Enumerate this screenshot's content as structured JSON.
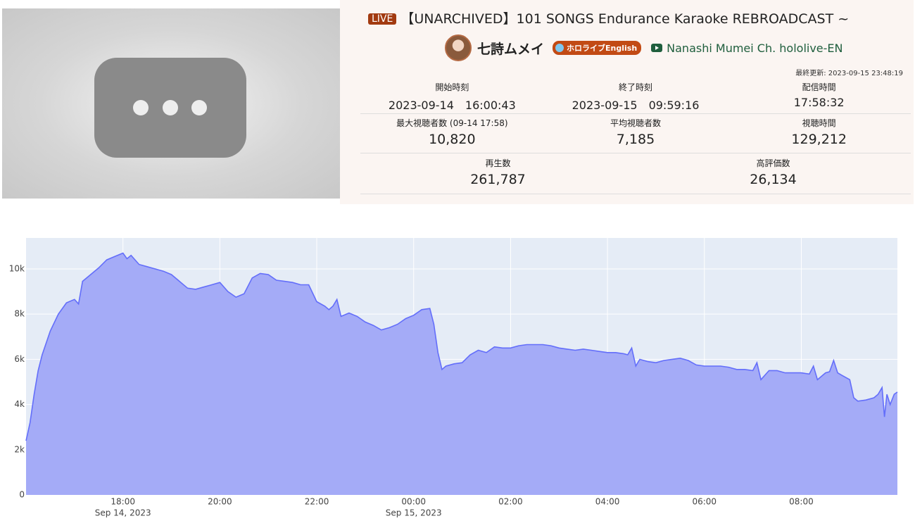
{
  "header": {
    "badge": "LIVE",
    "title": "【UNARCHIVED】101 SONGS Endurance Karaoke REBROADCAST ~",
    "channel_name": "七詩ムメイ",
    "org_badge": "ホロライブEnglish",
    "youtube_channel": "Nanashi Mumei Ch. hololive-EN",
    "last_updated": "最終更新: 2023-09-15 23:48:19"
  },
  "stats": {
    "rows": [
      [
        {
          "label": "開始時刻",
          "value": "2023-09-14　16:00:43"
        },
        {
          "label": "終了時刻",
          "value": "2023-09-15　09:59:16"
        },
        {
          "label": "配信時間",
          "value": "17:58:32"
        }
      ],
      [
        {
          "label": "最大視聴者数 (09-14 17:58)",
          "value": "10,820"
        },
        {
          "label": "平均視聴者数",
          "value": "7,185"
        },
        {
          "label": "視聴時間",
          "value": "129,212"
        }
      ],
      [
        {
          "label": "再生数",
          "value": "261,787"
        },
        {
          "label": "高評価数",
          "value": "26,134"
        }
      ]
    ]
  },
  "chart_data": {
    "type": "area",
    "grid": true,
    "xlim": [
      "2023-09-14 16:00",
      "2023-09-15 09:59"
    ],
    "ylim": [
      0,
      11370
    ],
    "xticks": [
      {
        "value": "2023-09-14 18:00",
        "label": "18:00"
      },
      {
        "value": "2023-09-14 20:00",
        "label": "20:00"
      },
      {
        "value": "2023-09-14 22:00",
        "label": "22:00"
      },
      {
        "value": "2023-09-15 00:00",
        "label": "00:00"
      },
      {
        "value": "2023-09-15 02:00",
        "label": "02:00"
      },
      {
        "value": "2023-09-15 04:00",
        "label": "04:00"
      },
      {
        "value": "2023-09-15 06:00",
        "label": "06:00"
      },
      {
        "value": "2023-09-15 08:00",
        "label": "08:00"
      }
    ],
    "xtick_dates": [
      {
        "value": "2023-09-14 18:00",
        "label": "Sep 14, 2023"
      },
      {
        "value": "2023-09-15 00:00",
        "label": "Sep 15, 2023"
      }
    ],
    "yticks": [
      0,
      {
        "value": 2000,
        "label": "2k"
      },
      {
        "value": 4000,
        "label": "4k"
      },
      {
        "value": 6000,
        "label": "6k"
      },
      {
        "value": 8000,
        "label": "8k"
      },
      {
        "value": 10000,
        "label": "10k"
      }
    ],
    "x": [
      "2023-09-14 16:00",
      "2023-09-14 16:05",
      "2023-09-14 16:10",
      "2023-09-14 16:15",
      "2023-09-14 16:20",
      "2023-09-14 16:30",
      "2023-09-14 16:40",
      "2023-09-14 16:50",
      "2023-09-14 17:00",
      "2023-09-14 17:05",
      "2023-09-14 17:10",
      "2023-09-14 17:20",
      "2023-09-14 17:30",
      "2023-09-14 17:40",
      "2023-09-14 17:50",
      "2023-09-14 18:00",
      "2023-09-14 18:05",
      "2023-09-14 18:10",
      "2023-09-14 18:20",
      "2023-09-14 18:30",
      "2023-09-14 18:40",
      "2023-09-14 18:50",
      "2023-09-14 19:00",
      "2023-09-14 19:10",
      "2023-09-14 19:20",
      "2023-09-14 19:30",
      "2023-09-14 19:40",
      "2023-09-14 19:50",
      "2023-09-14 20:00",
      "2023-09-14 20:10",
      "2023-09-14 20:20",
      "2023-09-14 20:30",
      "2023-09-14 20:40",
      "2023-09-14 20:50",
      "2023-09-14 21:00",
      "2023-09-14 21:10",
      "2023-09-14 21:20",
      "2023-09-14 21:30",
      "2023-09-14 21:40",
      "2023-09-14 21:50",
      "2023-09-14 22:00",
      "2023-09-14 22:10",
      "2023-09-14 22:15",
      "2023-09-14 22:20",
      "2023-09-14 22:25",
      "2023-09-14 22:30",
      "2023-09-14 22:40",
      "2023-09-14 22:50",
      "2023-09-14 23:00",
      "2023-09-14 23:10",
      "2023-09-14 23:20",
      "2023-09-14 23:30",
      "2023-09-14 23:40",
      "2023-09-14 23:50",
      "2023-09-15 00:00",
      "2023-09-15 00:10",
      "2023-09-15 00:20",
      "2023-09-15 00:25",
      "2023-09-15 00:30",
      "2023-09-15 00:35",
      "2023-09-15 00:40",
      "2023-09-15 00:50",
      "2023-09-15 01:00",
      "2023-09-15 01:10",
      "2023-09-15 01:20",
      "2023-09-15 01:30",
      "2023-09-15 01:40",
      "2023-09-15 01:50",
      "2023-09-15 02:00",
      "2023-09-15 02:10",
      "2023-09-15 02:20",
      "2023-09-15 02:30",
      "2023-09-15 02:40",
      "2023-09-15 02:50",
      "2023-09-15 03:00",
      "2023-09-15 03:10",
      "2023-09-15 03:20",
      "2023-09-15 03:30",
      "2023-09-15 03:40",
      "2023-09-15 03:50",
      "2023-09-15 04:00",
      "2023-09-15 04:10",
      "2023-09-15 04:20",
      "2023-09-15 04:25",
      "2023-09-15 04:30",
      "2023-09-15 04:35",
      "2023-09-15 04:40",
      "2023-09-15 04:50",
      "2023-09-15 05:00",
      "2023-09-15 05:10",
      "2023-09-15 05:20",
      "2023-09-15 05:30",
      "2023-09-15 05:40",
      "2023-09-15 05:50",
      "2023-09-15 06:00",
      "2023-09-15 06:10",
      "2023-09-15 06:20",
      "2023-09-15 06:30",
      "2023-09-15 06:40",
      "2023-09-15 06:50",
      "2023-09-15 07:00",
      "2023-09-15 07:05",
      "2023-09-15 07:10",
      "2023-09-15 07:20",
      "2023-09-15 07:30",
      "2023-09-15 07:40",
      "2023-09-15 07:50",
      "2023-09-15 08:00",
      "2023-09-15 08:10",
      "2023-09-15 08:15",
      "2023-09-15 08:20",
      "2023-09-15 08:30",
      "2023-09-15 08:35",
      "2023-09-15 08:40",
      "2023-09-15 08:45",
      "2023-09-15 08:50",
      "2023-09-15 09:00",
      "2023-09-15 09:05",
      "2023-09-15 09:10",
      "2023-09-15 09:20",
      "2023-09-15 09:30",
      "2023-09-15 09:35",
      "2023-09-15 09:40",
      "2023-09-15 09:43",
      "2023-09-15 09:46",
      "2023-09-15 09:50",
      "2023-09-15 09:55",
      "2023-09-15 09:59"
    ],
    "series": [
      {
        "color": "#636efa",
        "fill": "#a4abf7",
        "values": [
          2400,
          3200,
          4450,
          5500,
          6200,
          7250,
          8000,
          8500,
          8650,
          8450,
          9450,
          9750,
          10050,
          10400,
          10550,
          10700,
          10450,
          10600,
          10200,
          10100,
          10000,
          9900,
          9750,
          9450,
          9150,
          9100,
          9200,
          9300,
          9400,
          9000,
          8750,
          8900,
          9600,
          9800,
          9750,
          9500,
          9450,
          9400,
          9300,
          9300,
          8550,
          8350,
          8200,
          8350,
          8650,
          7900,
          8050,
          7900,
          7650,
          7500,
          7300,
          7400,
          7550,
          7800,
          7950,
          8200,
          8250,
          7550,
          6300,
          5550,
          5700,
          5800,
          5850,
          6200,
          6400,
          6300,
          6550,
          6500,
          6500,
          6600,
          6650,
          6650,
          6650,
          6600,
          6500,
          6450,
          6400,
          6450,
          6400,
          6350,
          6300,
          6300,
          6250,
          6200,
          6500,
          5700,
          6000,
          5900,
          5850,
          5950,
          6000,
          6050,
          5950,
          5750,
          5700,
          5700,
          5700,
          5650,
          5550,
          5550,
          5500,
          5850,
          5100,
          5500,
          5500,
          5400,
          5400,
          5400,
          5350,
          5700,
          5100,
          5400,
          5450,
          5950,
          5400,
          5300,
          5100,
          4300,
          4150,
          4200,
          4300,
          4450,
          4750,
          3450,
          4450,
          4000,
          4450,
          4550
        ]
      }
    ]
  }
}
